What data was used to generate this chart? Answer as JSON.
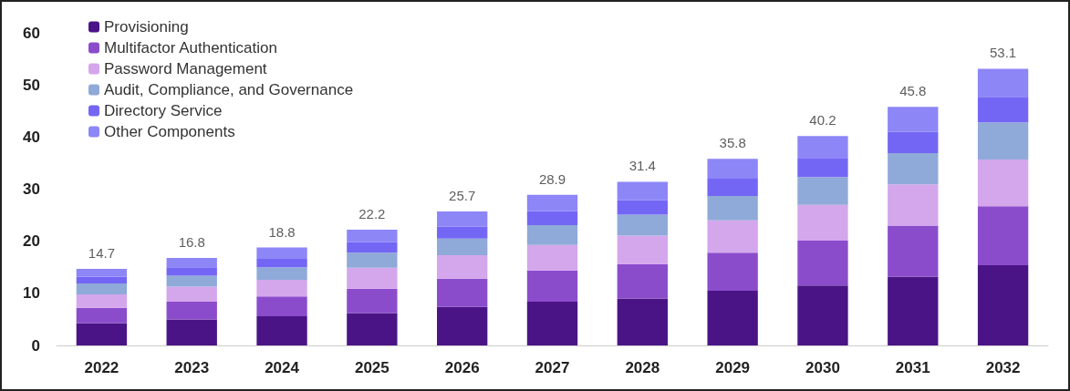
{
  "chart_data": {
    "type": "bar",
    "stacked": true,
    "categories": [
      "2022",
      "2023",
      "2024",
      "2025",
      "2026",
      "2027",
      "2028",
      "2029",
      "2030",
      "2031",
      "2032"
    ],
    "series": [
      {
        "name": "Provisioning",
        "color": "#4a1486",
        "values": [
          4.3,
          5.0,
          5.6,
          6.2,
          7.4,
          8.4,
          9.0,
          10.5,
          11.5,
          13.2,
          15.4
        ]
      },
      {
        "name": "Multifactor Authentication",
        "color": "#8b4ccc",
        "values": [
          2.9,
          3.4,
          3.8,
          4.7,
          5.4,
          6.0,
          6.6,
          7.3,
          8.6,
          9.8,
          11.3
        ]
      },
      {
        "name": "Password Management",
        "color": "#d4a6ec",
        "values": [
          2.6,
          2.9,
          3.2,
          4.0,
          4.5,
          4.9,
          5.5,
          6.2,
          6.9,
          7.9,
          9.0
        ]
      },
      {
        "name": "Audit, Compliance, and Governance",
        "color": "#8faad8",
        "values": [
          2.1,
          2.1,
          2.4,
          2.9,
          3.2,
          3.8,
          4.0,
          4.7,
          5.3,
          6.0,
          7.1
        ]
      },
      {
        "name": "Directory Service",
        "color": "#7466f5",
        "values": [
          1.3,
          1.6,
          1.6,
          2.0,
          2.3,
          2.7,
          2.8,
          3.3,
          3.7,
          4.1,
          4.9
        ]
      },
      {
        "name": "Other Components",
        "color": "#8c86f7",
        "values": [
          1.5,
          1.8,
          2.2,
          2.4,
          2.9,
          3.1,
          3.5,
          3.8,
          4.2,
          4.8,
          5.4
        ]
      }
    ],
    "totals": [
      "14.7",
      "16.8",
      "18.8",
      "22.2",
      "25.7",
      "28.9",
      "31.4",
      "35.8",
      "40.2",
      "45.8",
      "53.1"
    ],
    "ylim": [
      0,
      60
    ],
    "yticks": [
      0,
      10,
      20,
      30,
      40,
      50,
      60
    ],
    "grid": false,
    "legend": "top left"
  }
}
